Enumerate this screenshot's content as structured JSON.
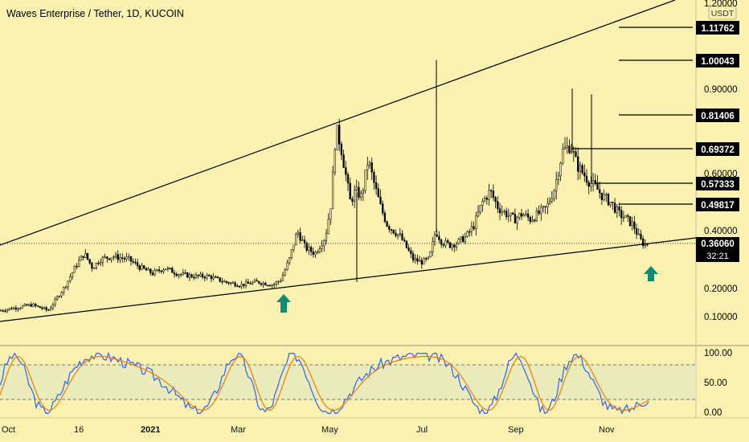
{
  "chart_data": {
    "type": "candlestick",
    "title": "Waves Enterprise / Tether, 1D, KUCOIN",
    "currency": "USDT",
    "ylim": [
      0.0,
      1.2
    ],
    "y_ticks": [
      "1.20000",
      "0.90000",
      "0.60000",
      "0.40000",
      "0.20000",
      "0.10000"
    ],
    "price_tags": [
      "1.11762",
      "1.00043",
      "0.81406",
      "0.69372",
      "0.57333",
      "0.49817"
    ],
    "current_price": "0.36060",
    "countdown": "32:21",
    "x_labels": [
      "Oct",
      "16",
      "2021",
      "Mar",
      "May",
      "Jul",
      "Sep",
      "Nov"
    ],
    "price_series": {
      "points": [
        [
          0,
          0.12
        ],
        [
          20,
          0.13
        ],
        [
          40,
          0.14
        ],
        [
          60,
          0.12
        ],
        [
          70,
          0.16
        ],
        [
          82,
          0.21
        ],
        [
          95,
          0.28
        ],
        [
          105,
          0.32
        ],
        [
          115,
          0.27
        ],
        [
          125,
          0.3
        ],
        [
          140,
          0.31
        ],
        [
          160,
          0.3
        ],
        [
          175,
          0.27
        ],
        [
          190,
          0.25
        ],
        [
          205,
          0.27
        ],
        [
          220,
          0.25
        ],
        [
          240,
          0.24
        ],
        [
          260,
          0.24
        ],
        [
          280,
          0.22
        ],
        [
          300,
          0.21
        ],
        [
          320,
          0.22
        ],
        [
          340,
          0.21
        ],
        [
          350,
          0.23
        ],
        [
          360,
          0.3
        ],
        [
          370,
          0.4
        ],
        [
          380,
          0.34
        ],
        [
          392,
          0.32
        ],
        [
          405,
          0.38
        ],
        [
          412,
          0.5
        ],
        [
          418,
          0.76
        ],
        [
          424,
          0.7
        ],
        [
          430,
          0.6
        ],
        [
          436,
          0.5
        ],
        [
          442,
          0.54
        ],
        [
          450,
          0.52
        ],
        [
          458,
          0.65
        ],
        [
          466,
          0.56
        ],
        [
          474,
          0.48
        ],
        [
          482,
          0.42
        ],
        [
          490,
          0.4
        ],
        [
          498,
          0.38
        ],
        [
          506,
          0.34
        ],
        [
          514,
          0.3
        ],
        [
          524,
          0.29
        ],
        [
          534,
          0.3
        ],
        [
          542,
          0.4
        ],
        [
          550,
          0.36
        ],
        [
          560,
          0.35
        ],
        [
          570,
          0.36
        ],
        [
          580,
          0.38
        ],
        [
          590,
          0.42
        ],
        [
          600,
          0.5
        ],
        [
          610,
          0.54
        ],
        [
          620,
          0.48
        ],
        [
          630,
          0.46
        ],
        [
          640,
          0.44
        ],
        [
          650,
          0.46
        ],
        [
          660,
          0.44
        ],
        [
          670,
          0.46
        ],
        [
          680,
          0.48
        ],
        [
          690,
          0.55
        ],
        [
          700,
          0.68
        ],
        [
          710,
          0.7
        ],
        [
          718,
          0.63
        ],
        [
          726,
          0.6
        ],
        [
          734,
          0.57
        ],
        [
          742,
          0.55
        ],
        [
          750,
          0.52
        ],
        [
          760,
          0.5
        ],
        [
          770,
          0.46
        ],
        [
          780,
          0.44
        ],
        [
          788,
          0.42
        ],
        [
          796,
          0.37
        ],
        [
          802,
          0.35
        ],
        [
          808,
          0.36
        ]
      ],
      "spikes": [
        [
          444,
          0.22
        ],
        [
          543,
          1.0
        ],
        [
          712,
          0.9
        ],
        [
          736,
          0.88
        ]
      ]
    },
    "stochastic": {
      "y_ticks": [
        "100.00",
        "50.00",
        "0.00"
      ],
      "band": [
        20,
        80
      ]
    }
  }
}
